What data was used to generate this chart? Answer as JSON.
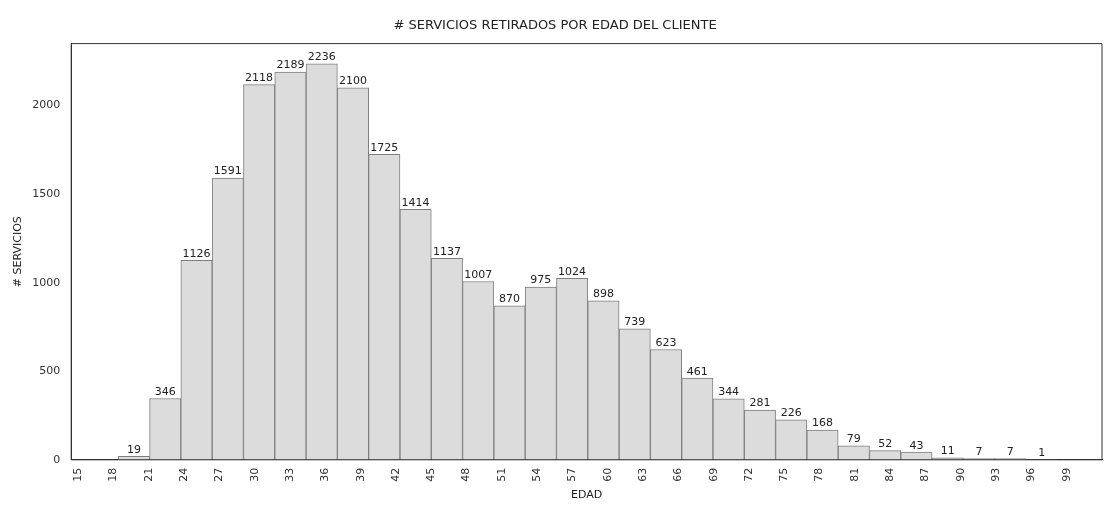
{
  "chart_data": {
    "type": "histogram",
    "title": "# SERVICIOS RETIRADOS POR EDAD DEL CLIENTE",
    "xlabel": "EDAD",
    "ylabel": "# SERVICIOS",
    "bins": [
      18.4,
      21.06,
      23.72,
      26.38,
      29.04,
      31.7,
      34.36,
      37.02,
      39.68,
      42.34,
      45.0,
      47.66,
      50.32,
      52.98,
      55.64,
      58.3,
      60.96,
      63.62,
      66.28,
      68.94,
      71.6,
      74.26,
      76.92,
      79.58,
      82.24,
      84.9,
      87.56,
      90.22,
      92.88,
      95.54,
      98.2
    ],
    "values": [
      19,
      346,
      1126,
      1591,
      2118,
      2189,
      2236,
      2100,
      1725,
      1414,
      1137,
      1007,
      870,
      975,
      1024,
      898,
      739,
      623,
      461,
      344,
      281,
      226,
      168,
      79,
      52,
      43,
      11,
      7,
      7,
      1
    ],
    "color": "#dcdcdc",
    "xlim": [
      14.4,
      102
    ],
    "xticks": [
      15,
      18,
      21,
      24,
      27,
      30,
      33,
      36,
      39,
      42,
      45,
      48,
      51,
      54,
      57,
      60,
      63,
      66,
      69,
      72,
      75,
      78,
      81,
      84,
      87,
      90,
      93,
      96,
      99
    ],
    "ylim": [
      0,
      2350
    ],
    "yticks": [
      0,
      500,
      1000,
      1500,
      2000
    ],
    "data_labels": true,
    "grid": false,
    "legend": false
  }
}
